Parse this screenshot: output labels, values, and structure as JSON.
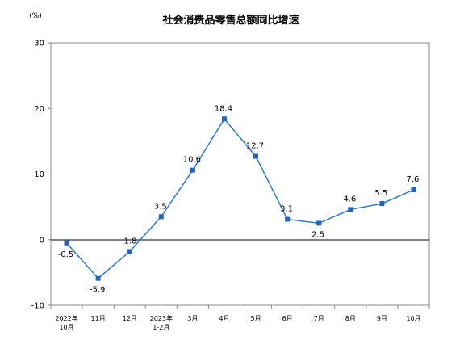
{
  "chart_data": {
    "type": "line",
    "title": "社会消费品零售总额同比增速",
    "y_unit": "(%)",
    "categories": [
      [
        "2022年",
        "10月"
      ],
      [
        "11月"
      ],
      [
        "12月"
      ],
      [
        "2023年",
        "1-2月"
      ],
      [
        "3月"
      ],
      [
        "4月"
      ],
      [
        "5月"
      ],
      [
        "6月"
      ],
      [
        "7月"
      ],
      [
        "8月"
      ],
      [
        "9月"
      ],
      [
        "10月"
      ]
    ],
    "values": [
      -0.5,
      -5.9,
      -1.8,
      3.5,
      10.6,
      18.4,
      12.7,
      3.1,
      2.5,
      4.6,
      5.5,
      7.6
    ],
    "data_labels": [
      "-0.5",
      "-5.9",
      "-1.8",
      "3.5",
      "10.6",
      "18.4",
      "12.7",
      "3.1",
      "2.5",
      "4.6",
      "5.5",
      "7.6"
    ],
    "ylim": [
      -10,
      30
    ],
    "yticks": [
      -10,
      0,
      10,
      20,
      30
    ],
    "grid": false,
    "legend": "none",
    "line_color": "#2f79d6",
    "marker_color": "#1f63c4"
  }
}
